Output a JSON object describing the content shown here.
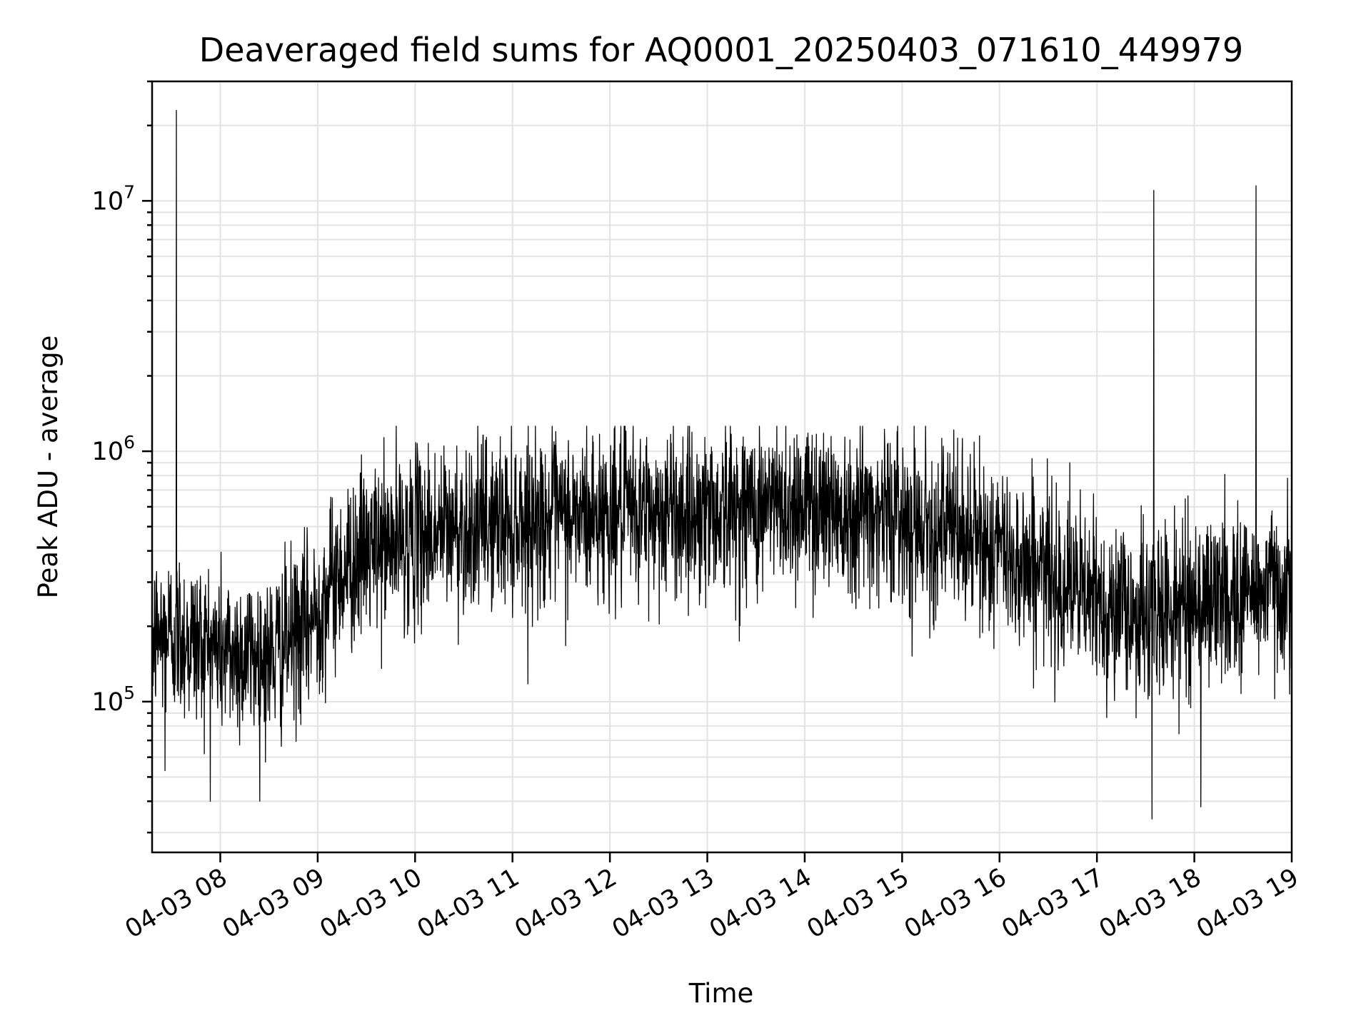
{
  "chart_data": {
    "type": "line",
    "title": "Deaveraged field sums for AQ0001_20250403_071610_449979",
    "xlabel": "Time",
    "ylabel": "Peak ADU - average",
    "yscale": "log",
    "grid": true,
    "legend": "none",
    "x_range": [
      "04-03 07:18",
      "04-03 19:00"
    ],
    "ylim": [
      25000,
      30000000
    ],
    "x_ticks": [
      "04-03 08",
      "04-03 09",
      "04-03 10",
      "04-03 11",
      "04-03 12",
      "04-03 13",
      "04-03 14",
      "04-03 15",
      "04-03 16",
      "04-03 17",
      "04-03 18",
      "04-03 19"
    ],
    "y_ticks": [
      {
        "base": "10",
        "exp": "5",
        "value": 100000
      },
      {
        "base": "10",
        "exp": "6",
        "value": 1000000
      },
      {
        "base": "10",
        "exp": "7",
        "value": 10000000
      }
    ],
    "line_color": "#000000",
    "trend": {
      "hours": [
        7.3,
        7.5,
        8.0,
        8.5,
        8.9,
        9.2,
        9.5,
        10.0,
        10.5,
        11.0,
        11.5,
        12.0,
        12.5,
        13.0,
        13.5,
        14.0,
        14.5,
        15.0,
        15.5,
        16.0,
        16.5,
        17.0,
        17.5,
        18.0,
        18.5,
        19.0
      ],
      "values": [
        180000,
        190000,
        160000,
        150000,
        200000,
        320000,
        400000,
        460000,
        500000,
        530000,
        540000,
        560000,
        570000,
        580000,
        600000,
        620000,
        600000,
        550000,
        480000,
        400000,
        330000,
        250000,
        220000,
        250000,
        270000,
        300000
      ]
    },
    "spikes": [
      {
        "time": "04-03 07:33",
        "value": 23000000
      },
      {
        "time": "04-03 07:26",
        "value": 53000
      },
      {
        "time": "04-03 17:35",
        "value": 11000000
      },
      {
        "time": "04-03 17:34",
        "value": 34000
      },
      {
        "time": "04-03 18:38",
        "value": 11500000
      },
      {
        "time": "04-03 18:04",
        "value": 38000
      }
    ]
  }
}
